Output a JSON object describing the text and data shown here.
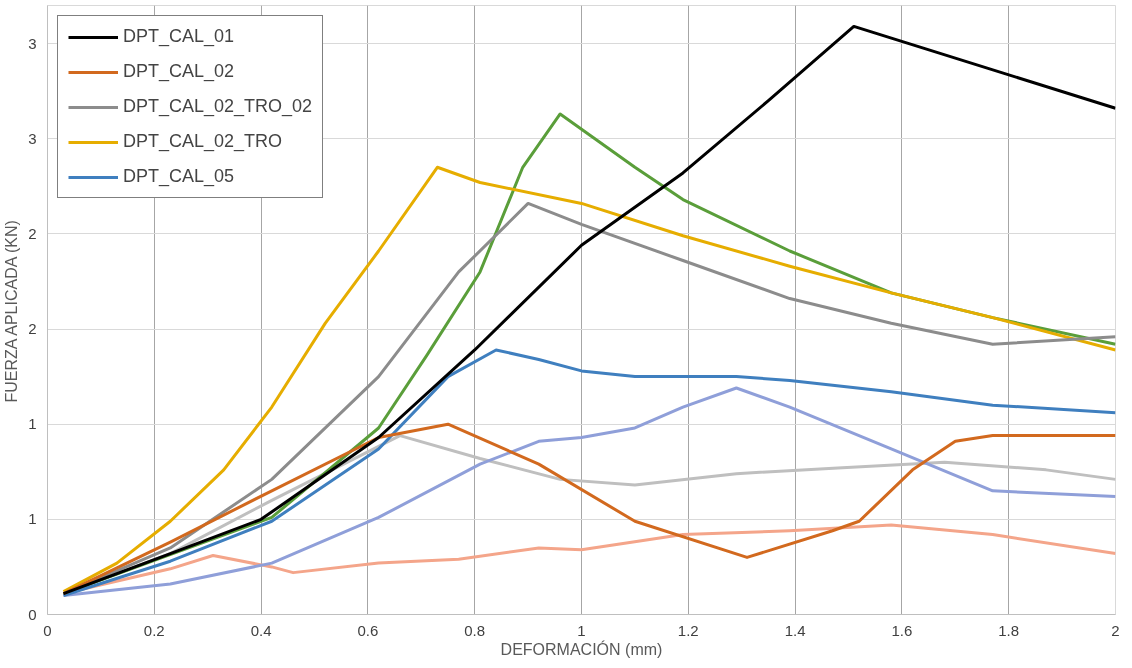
{
  "chart_data": {
    "type": "line",
    "xlabel": "DEFORMACIÓN (mm)",
    "ylabel": "FUERZA APLICADA (KN)",
    "xlim": [
      0,
      2
    ],
    "ylim": [
      0,
      3.2
    ],
    "xticks": [
      0,
      0.2,
      0.4,
      0.6,
      0.8,
      1,
      1.2,
      1.4,
      1.6,
      1.8,
      2
    ],
    "yticks": [
      0,
      {
        "value": 0.5,
        "label": "1"
      },
      1,
      {
        "value": 1.5,
        "label": "2"
      },
      2,
      {
        "value": 2.5,
        "label": "3"
      },
      3
    ],
    "grid": true,
    "legend": "top left",
    "line_style": "solid",
    "marker": "none",
    "series": [
      {
        "name": "DPT_CAL_01",
        "color": "#000000",
        "x": [
          0.03,
          0.23,
          0.4,
          0.62,
          0.8,
          1.0,
          1.19,
          1.35,
          1.51,
          2.0
        ],
        "values": [
          0.11,
          0.32,
          0.5,
          0.93,
          1.39,
          1.94,
          2.32,
          2.7,
          3.09,
          2.66
        ]
      },
      {
        "name": "DPT_CAL_02",
        "color": "#d2691e",
        "x": [
          0.03,
          0.23,
          0.42,
          0.62,
          0.75,
          0.92,
          1.1,
          1.31,
          1.47,
          1.52,
          1.62,
          1.7,
          1.77,
          2.0
        ],
        "values": [
          0.11,
          0.38,
          0.65,
          0.93,
          1.0,
          0.79,
          0.49,
          0.3,
          0.44,
          0.49,
          0.76,
          0.91,
          0.94,
          0.94
        ]
      },
      {
        "name": "DPT_CAL_02_TRO_02",
        "color": "#8c8c8c",
        "x": [
          0.03,
          0.23,
          0.42,
          0.62,
          0.77,
          0.9,
          1.0,
          1.19,
          1.39,
          1.58,
          1.77,
          2.0
        ],
        "values": [
          0.11,
          0.35,
          0.71,
          1.25,
          1.8,
          2.16,
          2.05,
          1.86,
          1.66,
          1.53,
          1.42,
          1.46
        ]
      },
      {
        "name": "DPT_CAL_02_TRO",
        "color": "#e6ad00",
        "x": [
          0.03,
          0.13,
          0.23,
          0.33,
          0.42,
          0.52,
          0.62,
          0.73,
          0.81,
          1.0,
          1.19,
          1.39,
          1.58,
          1.77,
          2.0
        ],
        "values": [
          0.12,
          0.27,
          0.49,
          0.76,
          1.09,
          1.53,
          1.91,
          2.35,
          2.27,
          2.16,
          1.99,
          1.83,
          1.69,
          1.56,
          1.39
        ]
      },
      {
        "name": "DPT_CAL_05",
        "color": "#3f7fbf",
        "x": [
          0.03,
          0.23,
          0.42,
          0.62,
          0.75,
          0.84,
          0.92,
          1.0,
          1.1,
          1.29,
          1.39,
          1.58,
          1.77,
          2.0
        ],
        "values": [
          0.1,
          0.28,
          0.49,
          0.87,
          1.25,
          1.39,
          1.34,
          1.28,
          1.25,
          1.25,
          1.23,
          1.17,
          1.1,
          1.06
        ]
      },
      {
        "color": "#5a9e3a",
        "x": [
          0.03,
          0.42,
          0.62,
          0.71,
          0.81,
          0.89,
          0.96,
          1.1,
          1.19,
          1.39,
          1.58,
          1.77,
          2.0
        ],
        "values": [
          0.11,
          0.51,
          0.98,
          1.36,
          1.8,
          2.35,
          2.63,
          2.35,
          2.18,
          1.91,
          1.69,
          1.56,
          1.42
        ]
      },
      {
        "color": "#8f9fd9",
        "x": [
          0.03,
          0.23,
          0.42,
          0.62,
          0.81,
          0.92,
          1.0,
          1.1,
          1.19,
          1.29,
          1.39,
          1.58,
          1.77,
          2.0
        ],
        "values": [
          0.1,
          0.16,
          0.27,
          0.51,
          0.79,
          0.91,
          0.93,
          0.98,
          1.09,
          1.19,
          1.09,
          0.87,
          0.65,
          0.62
        ]
      },
      {
        "color": "#bfbfbf",
        "x": [
          0.03,
          0.23,
          0.42,
          0.66,
          0.81,
          0.96,
          1.1,
          1.29,
          1.48,
          1.68,
          1.87,
          2.0
        ],
        "values": [
          0.11,
          0.32,
          0.6,
          0.94,
          0.82,
          0.71,
          0.68,
          0.74,
          0.77,
          0.8,
          0.76,
          0.71
        ]
      },
      {
        "color": "#f4a58a",
        "x": [
          0.03,
          0.23,
          0.31,
          0.42,
          0.46,
          0.62,
          0.77,
          0.92,
          1.0,
          1.19,
          1.39,
          1.58,
          1.77,
          2.0
        ],
        "values": [
          0.11,
          0.24,
          0.31,
          0.25,
          0.22,
          0.27,
          0.29,
          0.35,
          0.34,
          0.42,
          0.44,
          0.47,
          0.42,
          0.32
        ]
      }
    ]
  }
}
